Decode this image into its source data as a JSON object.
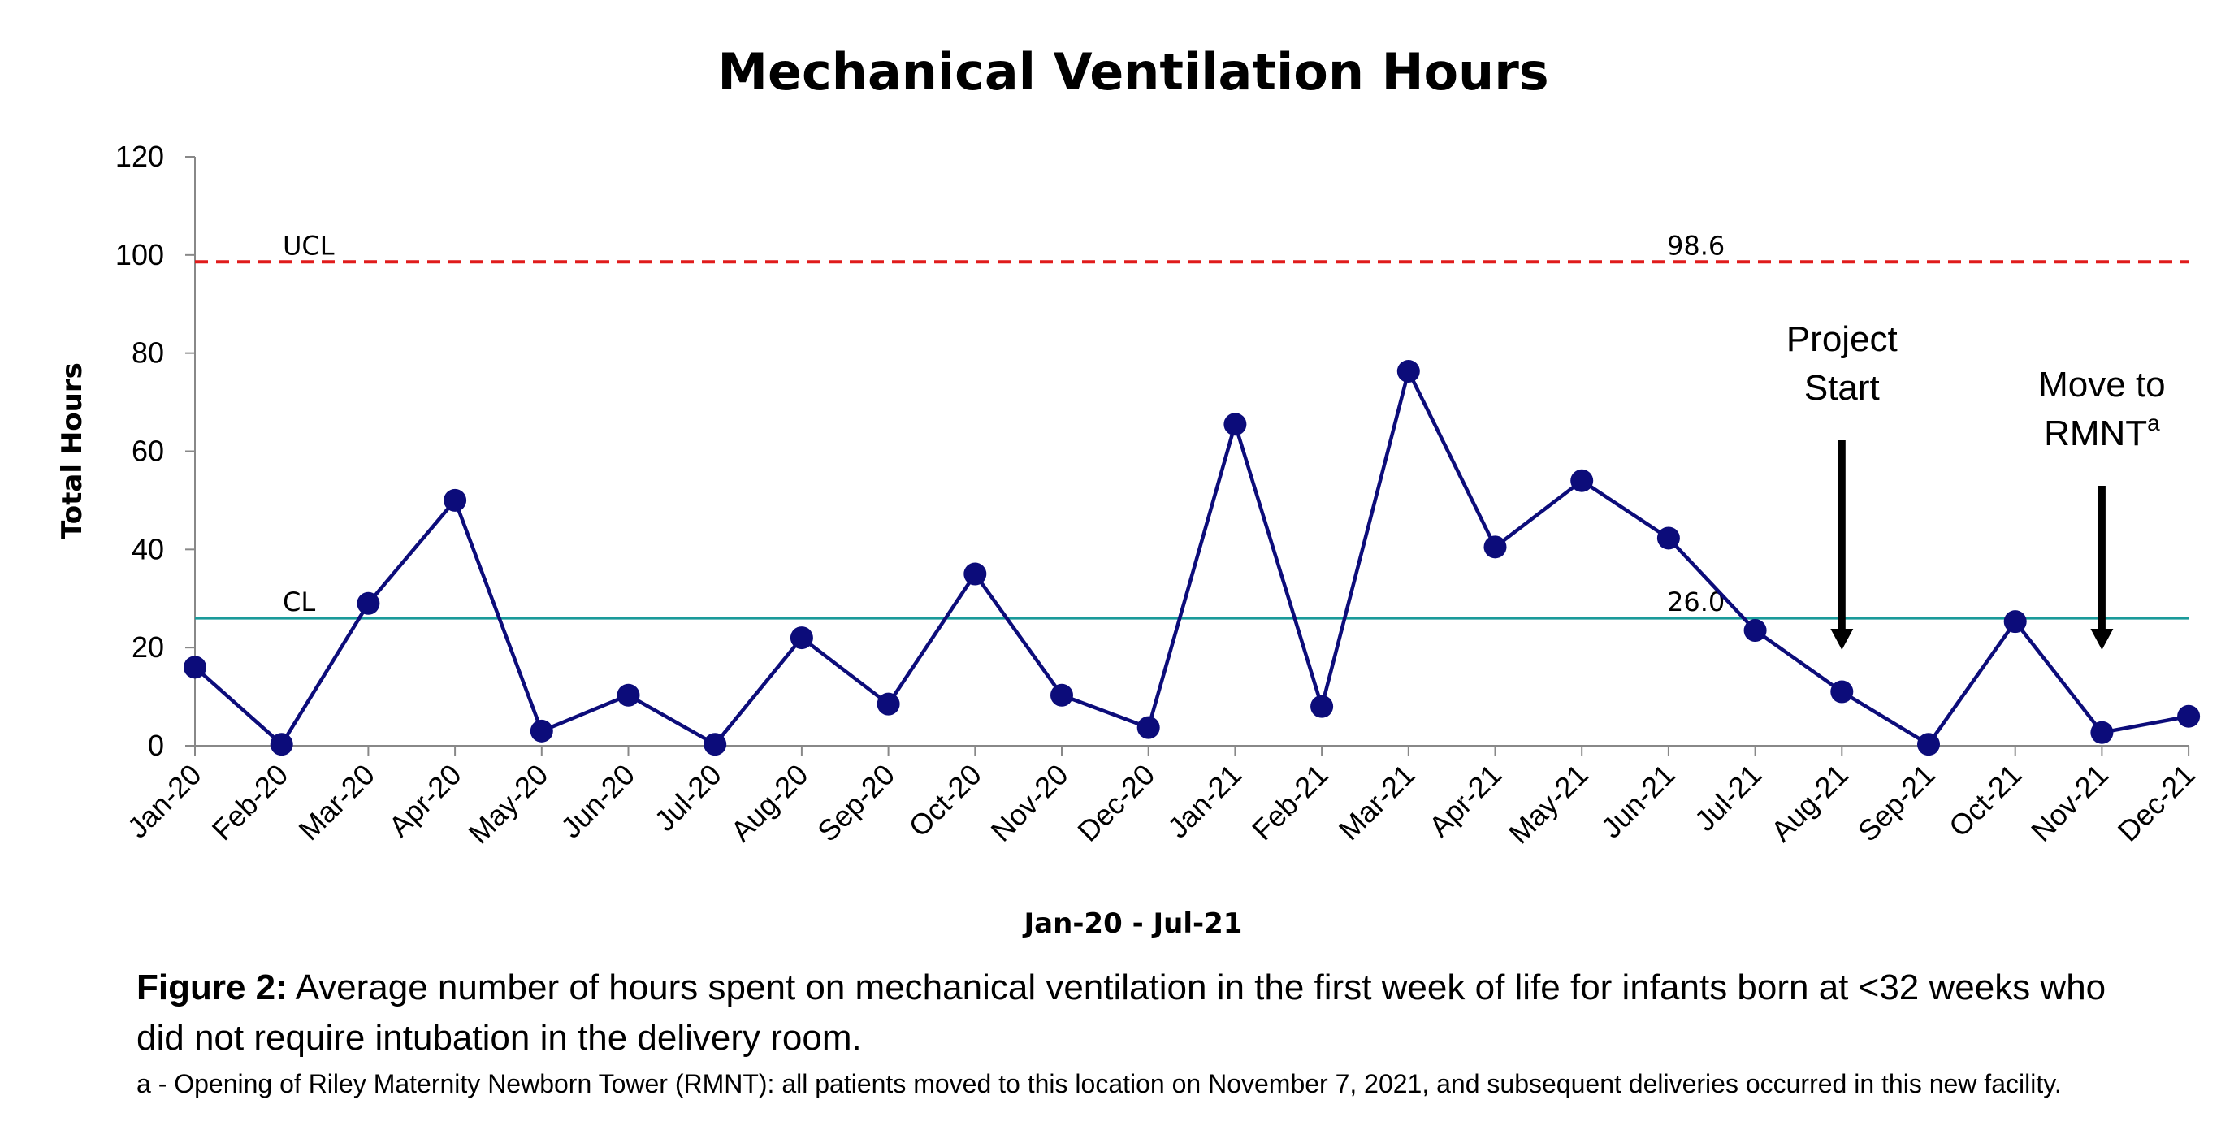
{
  "chart_data": {
    "type": "line",
    "title": "Mechanical Ventilation Hours",
    "xlabel": "Jan-20 - Jul-21",
    "ylabel": "Total Hours",
    "ylim": [
      0,
      120
    ],
    "yticks": [
      0,
      20,
      40,
      60,
      80,
      100,
      120
    ],
    "categories": [
      "Jan-20",
      "Feb-20",
      "Mar-20",
      "Apr-20",
      "May-20",
      "Jun-20",
      "Jul-20",
      "Aug-20",
      "Sep-20",
      "Oct-20",
      "Nov-20",
      "Dec-20",
      "Jan-21",
      "Feb-21",
      "Mar-21",
      "Apr-21",
      "May-21",
      "Jun-21",
      "Jul-21",
      "Aug-21",
      "Sep-21",
      "Oct-21",
      "Nov-21",
      "Dec-21"
    ],
    "series": [
      {
        "values": [
          16,
          0.3,
          29,
          50,
          3,
          10.3,
          0.3,
          22,
          8.5,
          35,
          10.3,
          3.7,
          65.5,
          8,
          76.3,
          40.5,
          54,
          42.3,
          23.5,
          11,
          0.3,
          25.3,
          2.7,
          6
        ]
      }
    ],
    "reference_lines": [
      {
        "label": "UCL",
        "value_label": "98.6",
        "value": 98.6,
        "style": "dashed"
      },
      {
        "label": "CL",
        "value_label": "26.0",
        "value": 26.0,
        "style": "solid"
      }
    ],
    "annotations": [
      {
        "lines": [
          "Project",
          "Start"
        ],
        "category": "Aug-21"
      },
      {
        "lines": [
          "Move to",
          "RMNT"
        ],
        "superscript": "a",
        "category": "Nov-21"
      }
    ],
    "grid": false,
    "legend": "none"
  },
  "colors": {
    "series": "#0c0c7a",
    "ucl": "#e01b1b",
    "cl": "#1a9a9a",
    "axis": "#888888",
    "arrow": "#000000"
  },
  "caption": {
    "figure_label": "Figure 2:",
    "text": "Average number of hours spent on mechanical ventilation in the first week of life for infants born at <32 weeks who did not require intubation in the delivery room.",
    "footnote": "a - Opening of Riley Maternity Newborn Tower (RMNT): all patients moved to this location on November 7, 2021, and subsequent deliveries occurred in this new facility."
  }
}
